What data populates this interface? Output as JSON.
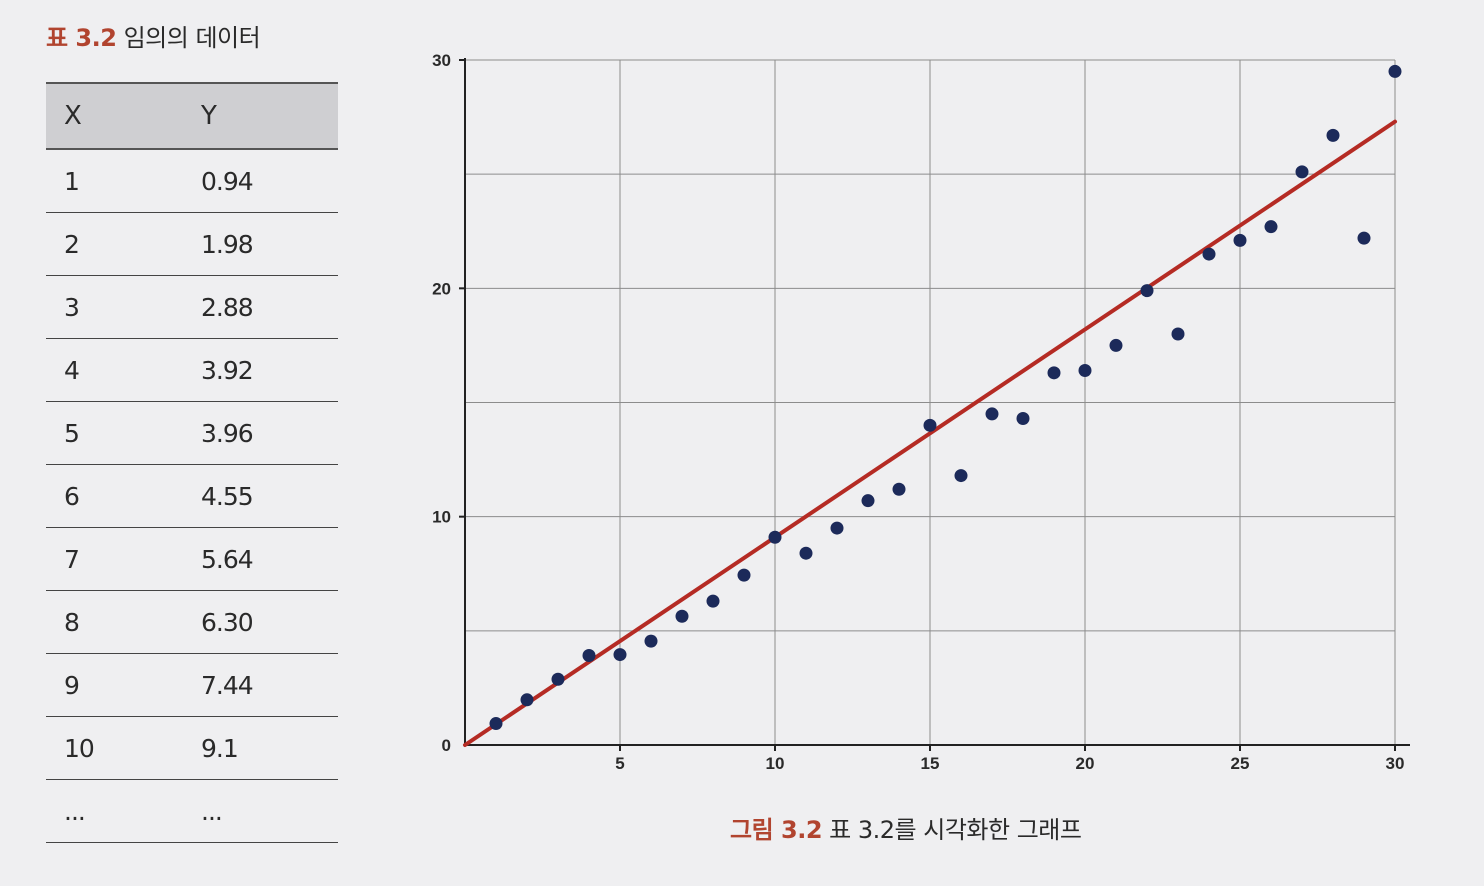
{
  "table": {
    "caption_tag": "표 3.2",
    "caption_text": "임의의 데이터",
    "headers": [
      "X",
      "Y"
    ],
    "rows": [
      [
        "1",
        "0.94"
      ],
      [
        "2",
        "1.98"
      ],
      [
        "3",
        "2.88"
      ],
      [
        "4",
        "3.92"
      ],
      [
        "5",
        "3.96"
      ],
      [
        "6",
        "4.55"
      ],
      [
        "7",
        "5.64"
      ],
      [
        "8",
        "6.30"
      ],
      [
        "9",
        "7.44"
      ],
      [
        "10",
        "9.1"
      ],
      [
        "...",
        "..."
      ]
    ]
  },
  "figure": {
    "caption_tag": "그림 3.2",
    "caption_text": "표 3.2를 시각화한 그래프"
  },
  "chart_data": {
    "type": "scatter",
    "xlim": [
      0,
      30
    ],
    "ylim": [
      0,
      30
    ],
    "x_ticks": [
      5,
      10,
      15,
      20,
      25,
      30
    ],
    "y_ticks": [
      0,
      10,
      20,
      30
    ],
    "grid": true,
    "points": [
      [
        1,
        0.94
      ],
      [
        2,
        1.98
      ],
      [
        3,
        2.88
      ],
      [
        4,
        3.92
      ],
      [
        5,
        3.96
      ],
      [
        6,
        4.55
      ],
      [
        7,
        5.64
      ],
      [
        8,
        6.3
      ],
      [
        9,
        7.44
      ],
      [
        10,
        9.1
      ],
      [
        11,
        8.4
      ],
      [
        12,
        9.5
      ],
      [
        13,
        10.7
      ],
      [
        14,
        11.2
      ],
      [
        15,
        14.0
      ],
      [
        16,
        11.8
      ],
      [
        17,
        14.5
      ],
      [
        18,
        14.3
      ],
      [
        19,
        16.3
      ],
      [
        20,
        16.4
      ],
      [
        21,
        17.5
      ],
      [
        22,
        19.9
      ],
      [
        23,
        18.0
      ],
      [
        24,
        21.5
      ],
      [
        25,
        22.1
      ],
      [
        26,
        22.7
      ],
      [
        27,
        25.1
      ],
      [
        28,
        26.7
      ],
      [
        29,
        22.2
      ],
      [
        30,
        29.5
      ]
    ],
    "trend_line": {
      "intercept": 0.0,
      "slope": 0.91
    },
    "point_color": "#1c2a5a",
    "line_color": "#b52b24",
    "grid_color": "#8c8c8c"
  }
}
